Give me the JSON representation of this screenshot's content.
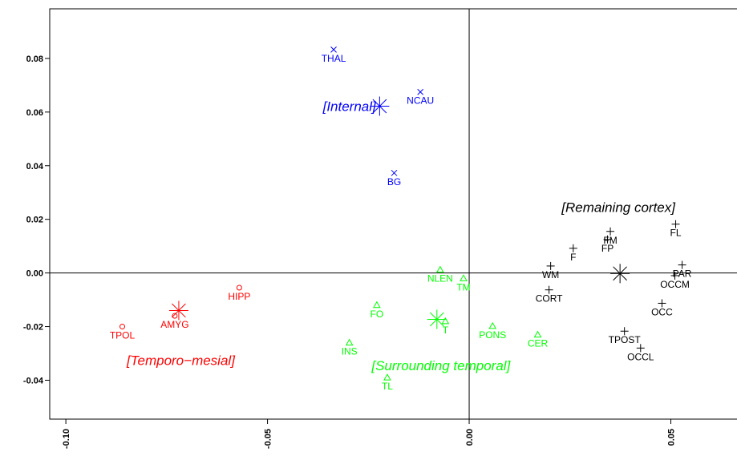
{
  "chart_data": {
    "type": "scatter",
    "title": "",
    "xlabel": "",
    "ylabel": "",
    "xlim": [
      -0.104,
      0.067
    ],
    "ylim": [
      -0.0545,
      0.0985
    ],
    "x_ticks": [
      -0.1,
      -0.05,
      0.0,
      0.05
    ],
    "x_tick_labels": [
      "-0.10",
      "-0.05",
      "0.00",
      "0.05"
    ],
    "y_ticks": [
      -0.04,
      -0.02,
      0.0,
      0.02,
      0.04,
      0.06,
      0.08
    ],
    "y_tick_labels": [
      "-0.04",
      "-0.02",
      "0.00",
      "0.02",
      "0.04",
      "0.06",
      "0.08"
    ],
    "reference_lines": {
      "x": 0,
      "y": 0
    },
    "grid": false,
    "legend": "none",
    "groups": [
      {
        "label": "[Internal]",
        "color": "#0000ff",
        "marker": "x",
        "centroid": {
          "x": -0.0222,
          "y": 0.0622
        },
        "label_pos": {
          "x": -0.0297,
          "y": 0.0622
        },
        "points": [
          {
            "label": "THAL",
            "x": -0.0336,
            "y": 0.0833
          },
          {
            "label": "NCAU",
            "x": -0.0121,
            "y": 0.0675
          },
          {
            "label": "BG",
            "x": -0.0186,
            "y": 0.0373
          }
        ]
      },
      {
        "label": "[Temporo−mesial]",
        "color": "#ff0000",
        "marker": "circle",
        "centroid": {
          "x": -0.072,
          "y": -0.014
        },
        "label_pos": {
          "x": -0.0715,
          "y": -0.0325
        },
        "points": [
          {
            "label": "HIPP",
            "x": -0.057,
            "y": -0.0055
          },
          {
            "label": "AMYG",
            "x": -0.073,
            "y": -0.016
          },
          {
            "label": "TPOL",
            "x": -0.086,
            "y": -0.02
          }
        ]
      },
      {
        "label": "[Surrounding temporal]",
        "color": "#00ff00",
        "marker": "triangle",
        "centroid": {
          "x": -0.008,
          "y": -0.0173
        },
        "label_pos": {
          "x": -0.007,
          "y": -0.0345
        },
        "points": [
          {
            "label": "NLEN",
            "x": -0.0072,
            "y": 0.0012
          },
          {
            "label": "TM",
            "x": -0.0014,
            "y": -0.002
          },
          {
            "label": "FO",
            "x": -0.0229,
            "y": -0.012
          },
          {
            "label": "T",
            "x": -0.0059,
            "y": -0.018
          },
          {
            "label": "PONS",
            "x": 0.0058,
            "y": -0.0198
          },
          {
            "label": "CER",
            "x": 0.017,
            "y": -0.023
          },
          {
            "label": "INS",
            "x": -0.0297,
            "y": -0.026
          },
          {
            "label": "TL",
            "x": -0.0203,
            "y": -0.039
          }
        ]
      },
      {
        "label": "[Remaining cortex]",
        "color": "#000000",
        "marker": "plus",
        "centroid": {
          "x": 0.0374,
          "y": -0.0002
        },
        "label_pos": {
          "x": 0.037,
          "y": 0.0245
        },
        "points": [
          {
            "label": "FL",
            "x": 0.0512,
            "y": 0.0182
          },
          {
            "label": "FM",
            "x": 0.035,
            "y": 0.0155
          },
          {
            "label": "FP",
            "x": 0.0343,
            "y": 0.0125
          },
          {
            "label": "F",
            "x": 0.0258,
            "y": 0.0092
          },
          {
            "label": "PAR",
            "x": 0.0528,
            "y": 0.003
          },
          {
            "label": "WM",
            "x": 0.0202,
            "y": 0.0026
          },
          {
            "label": "OCCM",
            "x": 0.051,
            "y": -0.001
          },
          {
            "label": "CORT",
            "x": 0.0198,
            "y": -0.0063
          },
          {
            "label": "OCC",
            "x": 0.0478,
            "y": -0.0113
          },
          {
            "label": "TPOST",
            "x": 0.0385,
            "y": -0.0217
          },
          {
            "label": "OCCL",
            "x": 0.0425,
            "y": -0.028
          }
        ]
      }
    ]
  }
}
